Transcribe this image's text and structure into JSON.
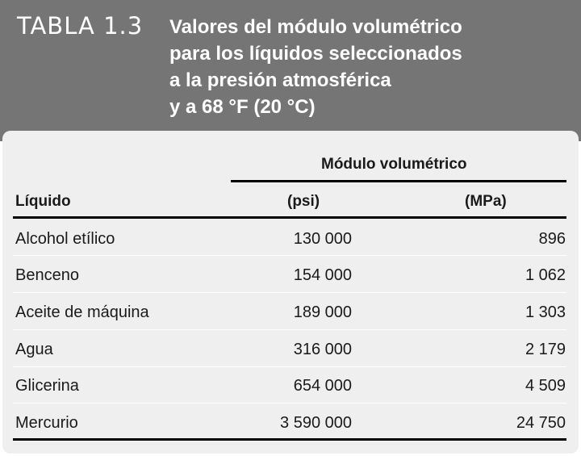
{
  "table": {
    "label": "TABLA 1.3",
    "title_lines": [
      "Valores del módulo volumétrico",
      "para los líquidos seleccionados",
      "a la presión atmosférica",
      "y a 68 °F (20 °C)"
    ],
    "group_header": "Módulo volumétrico",
    "col_liquid": "Líquido",
    "col_psi": "(psi)",
    "col_mpa": "(MPa)",
    "rows": [
      {
        "liquid": "Alcohol etílico",
        "psi": "130 000",
        "mpa": "896"
      },
      {
        "liquid": "Benceno",
        "psi": "154 000",
        "mpa": "1 062"
      },
      {
        "liquid": "Aceite de máquina",
        "psi": "189 000",
        "mpa": "1 303"
      },
      {
        "liquid": "Agua",
        "psi": "316 000",
        "mpa": "2 179"
      },
      {
        "liquid": "Glicerina",
        "psi": "654 000",
        "mpa": "4 509"
      },
      {
        "liquid": "Mercurio",
        "psi": "3 590 000",
        "mpa": "24 750"
      }
    ]
  }
}
